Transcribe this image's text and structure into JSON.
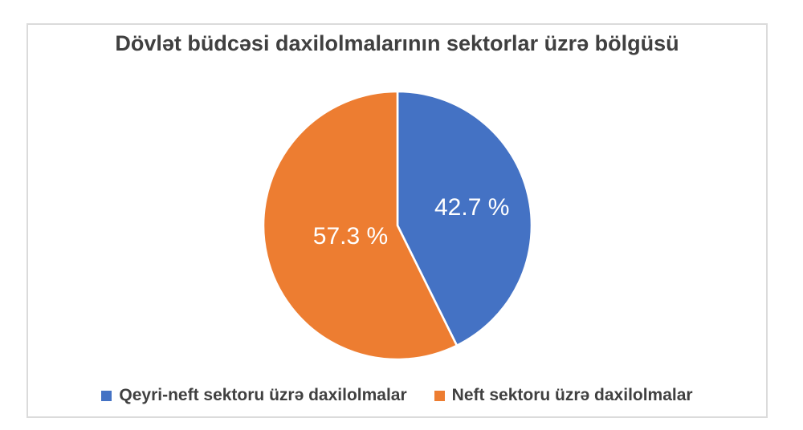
{
  "chart": {
    "frame_border_color": "#dbdbdb",
    "text_color": "#404040",
    "background": "#ffffff"
  },
  "chart_data": {
    "type": "pie",
    "title": "Dövlət büdcəsi daxilolmalarının sektorlar üzrə bölgüsü",
    "start_angle_deg": 0,
    "direction": "clockwise",
    "legend_position": "bottom",
    "data_label_color": "#ffffff",
    "slice_separator_color": "#ffffff",
    "slices": [
      {
        "label": "Qeyri-neft sektoru üzrə daxilolmalar",
        "value": 42.7,
        "display": "42.7 %",
        "color": "#4472C4"
      },
      {
        "label": "Neft sektoru üzrə daxilolmalar",
        "value": 57.3,
        "display": "57.3 %",
        "color": "#ED7D31"
      }
    ]
  },
  "legend": {
    "items": [
      {
        "label": "Qeyri-neft sektoru üzrə daxilolmalar",
        "color": "#4472C4"
      },
      {
        "label": "Neft sektoru üzrə daxilolmalar",
        "color": "#ED7D31"
      }
    ]
  }
}
